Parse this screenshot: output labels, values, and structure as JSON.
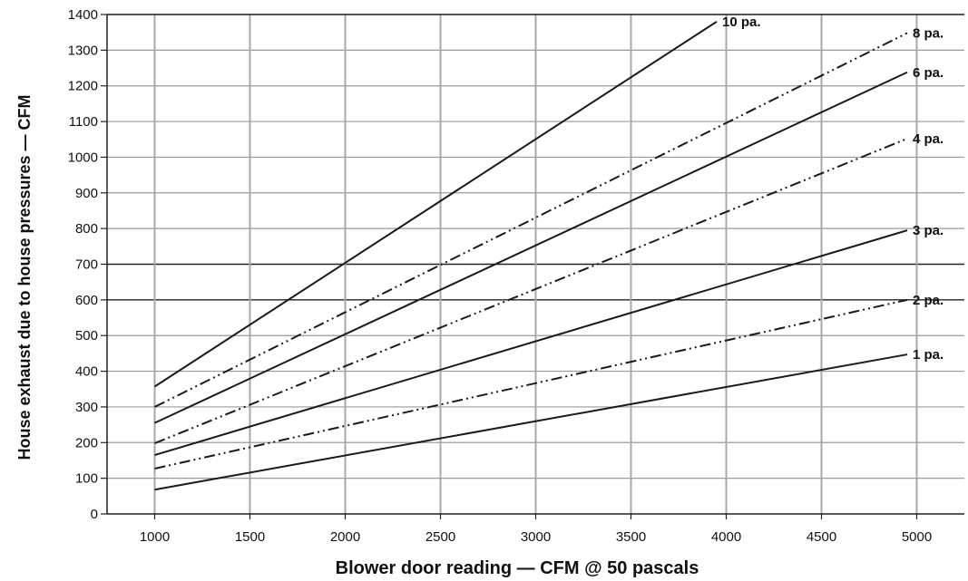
{
  "chart_data": {
    "type": "line",
    "title": "",
    "xlabel": "Blower door reading — CFM @ 50 pascals",
    "ylabel": "House exhaust due to house pressures — CFM",
    "xlim": [
      750,
      5250
    ],
    "ylim": [
      0,
      1400
    ],
    "xticks": [
      1000,
      1500,
      2000,
      2500,
      3000,
      3500,
      4000,
      4500,
      5000
    ],
    "yticks": [
      0,
      100,
      200,
      300,
      400,
      500,
      600,
      700,
      800,
      900,
      1000,
      1100,
      1200,
      1300,
      1400
    ],
    "grid": true,
    "emphasized_gridlines": [
      700,
      600
    ],
    "series": [
      {
        "name": "10 pa.",
        "style": "solid",
        "x": [
          1000,
          3950
        ],
        "y": [
          357,
          1380
        ]
      },
      {
        "name": "8 pa.",
        "style": "dashdotdot",
        "x": [
          1000,
          4950
        ],
        "y": [
          300,
          1348
        ]
      },
      {
        "name": "6 pa.",
        "style": "solid",
        "x": [
          1000,
          4950
        ],
        "y": [
          255,
          1238
        ]
      },
      {
        "name": "4 pa.",
        "style": "dashdotdot",
        "x": [
          1000,
          4950
        ],
        "y": [
          198,
          1052
        ]
      },
      {
        "name": "3 pa.",
        "style": "solid",
        "x": [
          1000,
          4950
        ],
        "y": [
          165,
          795
        ]
      },
      {
        "name": "2 pa.",
        "style": "dashdotdot",
        "x": [
          1000,
          4950
        ],
        "y": [
          127,
          600
        ]
      },
      {
        "name": "1 pa.",
        "style": "solid",
        "x": [
          1000,
          4950
        ],
        "y": [
          68,
          447
        ]
      }
    ]
  }
}
